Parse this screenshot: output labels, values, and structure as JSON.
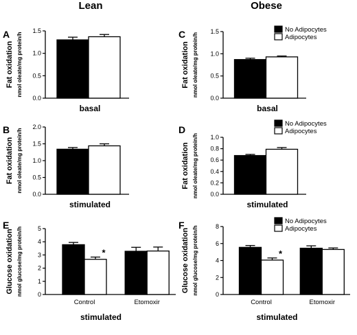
{
  "column_headers": [
    "Lean",
    "Obese"
  ],
  "legend": [
    {
      "label": "No Adipocytes",
      "fill": "#000000"
    },
    {
      "label": "Adipocytes",
      "fill": "#ffffff"
    }
  ],
  "chart_data": [
    {
      "panel": "A",
      "type": "bar",
      "ylabel": "Fat oxidation",
      "ylabel_unit": "nmol oleate/mg protein/h",
      "xlabel": "basal",
      "ylim": [
        0,
        1.5
      ],
      "yticks": [
        0.0,
        0.5,
        1.0,
        1.5
      ],
      "categories": [
        ""
      ],
      "series": [
        {
          "name": "No Adipocytes",
          "values": [
            1.3
          ],
          "errors": [
            0.06
          ]
        },
        {
          "name": "Adipocytes",
          "values": [
            1.37
          ],
          "errors": [
            0.05
          ]
        }
      ],
      "legend": false,
      "annotations": []
    },
    {
      "panel": "B",
      "type": "bar",
      "ylabel": "Fat oxidation",
      "ylabel_unit": "nmol oleate/mg protein/h",
      "xlabel": "stimulated",
      "ylim": [
        0,
        2.0
      ],
      "yticks": [
        0.0,
        0.5,
        1.0,
        1.5,
        2.0
      ],
      "categories": [
        ""
      ],
      "series": [
        {
          "name": "No Adipocytes",
          "values": [
            1.34
          ],
          "errors": [
            0.05
          ]
        },
        {
          "name": "Adipocytes",
          "values": [
            1.44
          ],
          "errors": [
            0.06
          ]
        }
      ],
      "legend": false,
      "annotations": []
    },
    {
      "panel": "C",
      "type": "bar",
      "ylabel": "Fat oxidation",
      "ylabel_unit": "nmol oleate/mg protein/h",
      "xlabel": "basal",
      "ylim": [
        0,
        1.5
      ],
      "yticks": [
        0.0,
        0.5,
        1.0,
        1.5
      ],
      "categories": [
        ""
      ],
      "series": [
        {
          "name": "No Adipocytes",
          "values": [
            0.87
          ],
          "errors": [
            0.03
          ]
        },
        {
          "name": "Adipocytes",
          "values": [
            0.93
          ],
          "errors": [
            0.02
          ]
        }
      ],
      "legend": true,
      "annotations": []
    },
    {
      "panel": "D",
      "type": "bar",
      "ylabel": "Fat oxidation",
      "ylabel_unit": "nmol oleate/mg protein/h",
      "xlabel": "stimulated",
      "ylim": [
        0,
        1.0
      ],
      "yticks": [
        0.0,
        0.2,
        0.4,
        0.6,
        0.8,
        1.0
      ],
      "categories": [
        ""
      ],
      "series": [
        {
          "name": "No Adipocytes",
          "values": [
            0.68
          ],
          "errors": [
            0.02
          ]
        },
        {
          "name": "Adipocytes",
          "values": [
            0.79
          ],
          "errors": [
            0.03
          ]
        }
      ],
      "legend": true,
      "annotations": []
    },
    {
      "panel": "E",
      "type": "bar",
      "ylabel": "Glucose oxidation",
      "ylabel_unit": "nmol glucose/mg protein/h",
      "xlabel": "stimulated",
      "ylim": [
        0,
        5
      ],
      "yticks": [
        0,
        1,
        2,
        3,
        4,
        5
      ],
      "categories": [
        "Control",
        "Etomoxir"
      ],
      "series": [
        {
          "name": "No Adipocytes",
          "values": [
            3.78,
            3.28
          ],
          "errors": [
            0.17,
            0.3
          ]
        },
        {
          "name": "Adipocytes",
          "values": [
            2.67,
            3.3
          ],
          "errors": [
            0.17,
            0.3
          ]
        }
      ],
      "legend": false,
      "annotations": [
        {
          "text": "*",
          "category": 0,
          "series": 1
        }
      ]
    },
    {
      "panel": "F",
      "type": "bar",
      "ylabel": "Glucose oxidation",
      "ylabel_unit": "nmol glucose/mg protein/h",
      "xlabel": "stimulated",
      "ylim": [
        0,
        8
      ],
      "yticks": [
        0,
        2,
        4,
        6,
        8
      ],
      "categories": [
        "Control",
        "Etomoxir"
      ],
      "series": [
        {
          "name": "No Adipocytes",
          "values": [
            5.55,
            5.45
          ],
          "errors": [
            0.22,
            0.28
          ]
        },
        {
          "name": "Adipocytes",
          "values": [
            4.05,
            5.3
          ],
          "errors": [
            0.25,
            0.18
          ]
        }
      ],
      "legend": true,
      "annotations": [
        {
          "text": "*",
          "category": 0,
          "series": 1
        }
      ]
    }
  ]
}
